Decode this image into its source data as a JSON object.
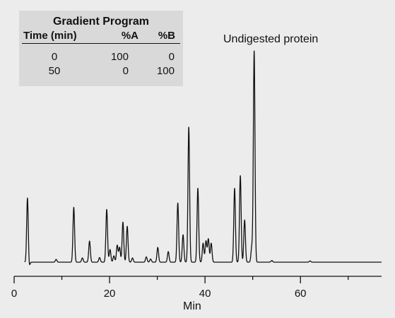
{
  "chart_data": {
    "type": "line",
    "xlabel": "Min",
    "ylabel": "",
    "title": "",
    "xlim": [
      0,
      77
    ],
    "ylim": [
      -3,
      100
    ],
    "x_ticks": [
      0,
      20,
      40,
      60
    ],
    "x_minor_ticks": [
      10,
      30,
      50,
      70
    ],
    "grid": false,
    "baseline": 0,
    "peaks": [
      {
        "x": 2.8,
        "y": 31
      },
      {
        "x": 3.1,
        "y": -3
      },
      {
        "x": 8.8,
        "y": 1.3
      },
      {
        "x": 12.5,
        "y": 26
      },
      {
        "x": 14.3,
        "y": 2
      },
      {
        "x": 15.8,
        "y": 10
      },
      {
        "x": 17.9,
        "y": 2.2
      },
      {
        "x": 19.4,
        "y": 25
      },
      {
        "x": 20.1,
        "y": 6
      },
      {
        "x": 20.9,
        "y": 3
      },
      {
        "x": 21.6,
        "y": 8
      },
      {
        "x": 22.1,
        "y": 7
      },
      {
        "x": 22.8,
        "y": 19
      },
      {
        "x": 23.7,
        "y": 17
      },
      {
        "x": 24.8,
        "y": 2
      },
      {
        "x": 27.7,
        "y": 2.5
      },
      {
        "x": 28.6,
        "y": 1.5
      },
      {
        "x": 30.1,
        "y": 7
      },
      {
        "x": 32.3,
        "y": 5
      },
      {
        "x": 34.3,
        "y": 28
      },
      {
        "x": 35.4,
        "y": 13
      },
      {
        "x": 36.6,
        "y": 64
      },
      {
        "x": 38.5,
        "y": 35
      },
      {
        "x": 39.6,
        "y": 9
      },
      {
        "x": 40.2,
        "y": 10
      },
      {
        "x": 40.7,
        "y": 11
      },
      {
        "x": 41.3,
        "y": 9
      },
      {
        "x": 46.2,
        "y": 35
      },
      {
        "x": 47.4,
        "y": 41
      },
      {
        "x": 48.3,
        "y": 20
      },
      {
        "x": 49.8,
        "y": 7
      },
      {
        "x": 50.3,
        "y": 100
      },
      {
        "x": 54,
        "y": 0.8
      },
      {
        "x": 62,
        "y": 0.6
      }
    ],
    "annotations": [
      {
        "text": "Undigested protein",
        "x": 50.3
      }
    ]
  },
  "gradient_table": {
    "title": "Gradient Program",
    "headers": [
      "Time (min)",
      "%A",
      "%B"
    ],
    "rows": [
      {
        "time": "0",
        "a": "100",
        "b": "0"
      },
      {
        "time": "50",
        "a": "0",
        "b": "100"
      }
    ]
  }
}
